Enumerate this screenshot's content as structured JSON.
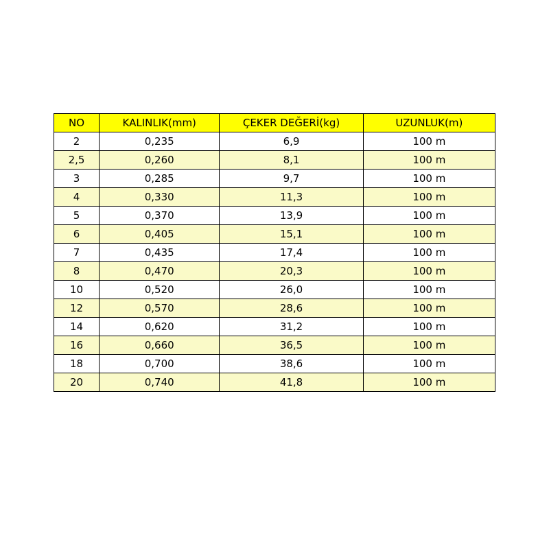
{
  "colors": {
    "header_bg": "#ffff00",
    "alt_row_bg": "#fafac8",
    "row_bg": "#ffffff"
  },
  "table": {
    "headers": [
      "NO",
      "KALINLIK(mm)",
      "ÇEKER DEĞERİ(kg)",
      "UZUNLUK(m)"
    ],
    "rows": [
      [
        "2",
        "0,235",
        "6,9",
        "100 m"
      ],
      [
        "2,5",
        "0,260",
        "8,1",
        "100 m"
      ],
      [
        "3",
        "0,285",
        "9,7",
        "100 m"
      ],
      [
        "4",
        "0,330",
        "11,3",
        "100 m"
      ],
      [
        "5",
        "0,370",
        "13,9",
        "100 m"
      ],
      [
        "6",
        "0,405",
        "15,1",
        "100 m"
      ],
      [
        "7",
        "0,435",
        "17,4",
        "100 m"
      ],
      [
        "8",
        "0,470",
        "20,3",
        "100 m"
      ],
      [
        "10",
        "0,520",
        "26,0",
        "100 m"
      ],
      [
        "12",
        "0,570",
        "28,6",
        "100 m"
      ],
      [
        "14",
        "0,620",
        "31,2",
        "100 m"
      ],
      [
        "16",
        "0,660",
        "36,5",
        "100 m"
      ],
      [
        "18",
        "0,700",
        "38,6",
        "100 m"
      ],
      [
        "20",
        "0,740",
        "41,8",
        "100 m"
      ]
    ]
  }
}
